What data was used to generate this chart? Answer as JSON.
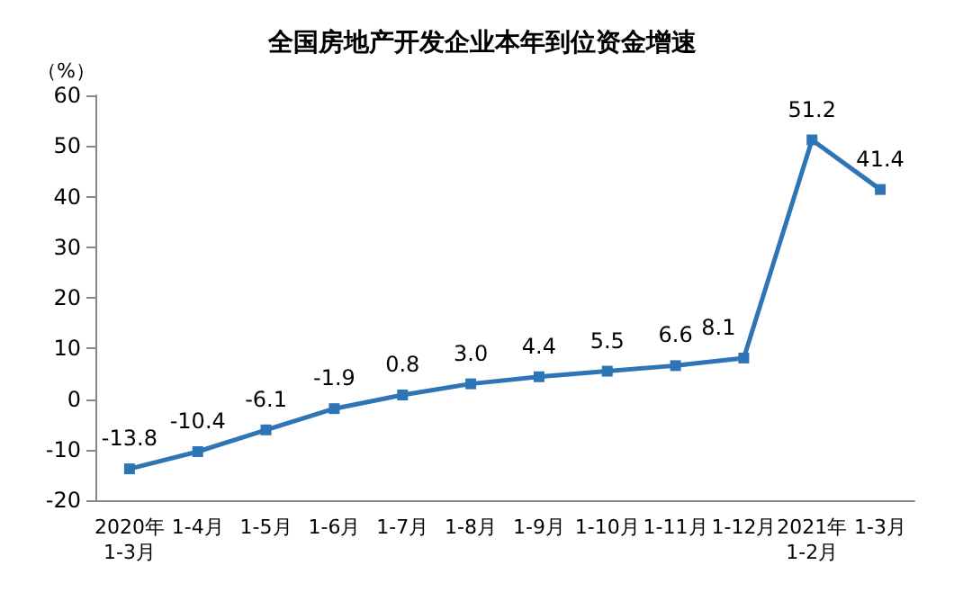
{
  "chart_data": {
    "type": "line",
    "title": "全国房地产开发企业本年到位资金增速",
    "ylabel": "（%）",
    "categories": [
      "2020年\n1-3月",
      "1-4月",
      "1-5月",
      "1-6月",
      "1-7月",
      "1-8月",
      "1-9月",
      "1-10月",
      "1-11月",
      "1-12月",
      "2021年\n1-2月",
      "1-3月"
    ],
    "series": [
      {
        "color": "#2e75b6",
        "values": [
          -13.8,
          -10.4,
          -6.1,
          -1.9,
          0.8,
          3.0,
          4.4,
          5.5,
          6.6,
          8.1,
          51.2,
          41.4
        ],
        "value_labels": [
          "-13.8",
          "-10.4",
          "-6.1",
          "-1.9",
          "0.8",
          "3.0",
          "4.4",
          "5.5",
          "6.6",
          "8.1",
          "51.2",
          "41.4"
        ]
      }
    ],
    "ylim": [
      -20,
      60
    ],
    "yticks": [
      -20,
      -10,
      0,
      10,
      20,
      30,
      40,
      50,
      60
    ],
    "grid": false,
    "marker": "square",
    "line_style": "solid"
  }
}
